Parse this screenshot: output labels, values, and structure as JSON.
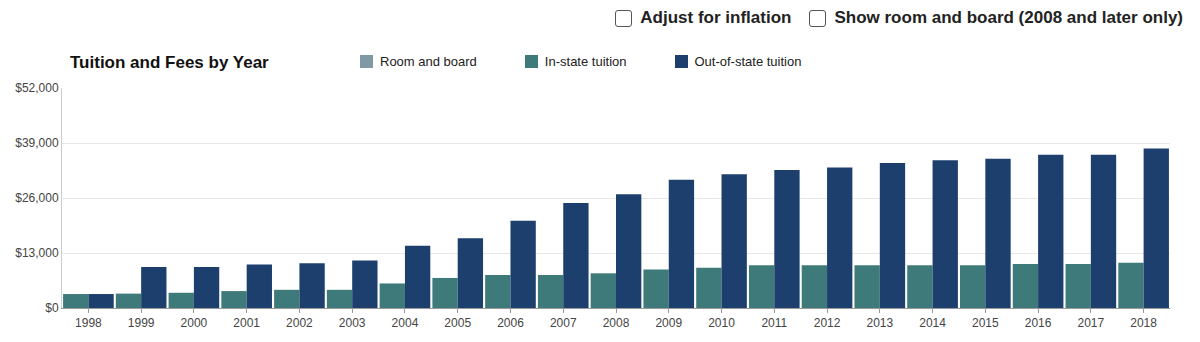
{
  "controls": [
    "Adjust for inflation",
    "Show room and board (2008 and later only)"
  ],
  "chart_data": {
    "type": "bar",
    "title": "Tuition and Fees by Year",
    "categories": [
      "1998",
      "1999",
      "2000",
      "2001",
      "2002",
      "2003",
      "2004",
      "2005",
      "2006",
      "2007",
      "2008",
      "2009",
      "2010",
      "2011",
      "2012",
      "2013",
      "2014",
      "2015",
      "2016",
      "2017",
      "2018"
    ],
    "series": [
      {
        "name": "Room and board",
        "color": "#7f9aa5",
        "values": [
          null,
          null,
          null,
          null,
          null,
          null,
          null,
          null,
          null,
          null,
          null,
          null,
          null,
          null,
          null,
          null,
          null,
          null,
          null,
          null,
          null
        ]
      },
      {
        "name": "In-state tuition",
        "color": "#3f7a7a",
        "values": [
          3300,
          3400,
          3600,
          4000,
          4300,
          4300,
          5800,
          7100,
          7800,
          7800,
          8200,
          9100,
          9500,
          10100,
          10100,
          10100,
          10100,
          10100,
          10400,
          10400,
          10700
        ]
      },
      {
        "name": "Out-of-state tuition",
        "color": "#1d3f6e",
        "values": [
          3300,
          9700,
          9700,
          10300,
          10600,
          11200,
          14700,
          16500,
          20600,
          24800,
          26900,
          30300,
          31600,
          32600,
          33200,
          34300,
          34900,
          35300,
          36200,
          36200,
          37700
        ]
      }
    ],
    "ylim": [
      0,
      52000
    ],
    "yticks": [
      {
        "value": 0,
        "label": "$0"
      },
      {
        "value": 13000,
        "label": "$13,000"
      },
      {
        "value": 26000,
        "label": "$26,000"
      },
      {
        "value": 39000,
        "label": "$39,000"
      },
      {
        "value": 52000,
        "label": "$52,000"
      }
    ],
    "grid": true
  }
}
